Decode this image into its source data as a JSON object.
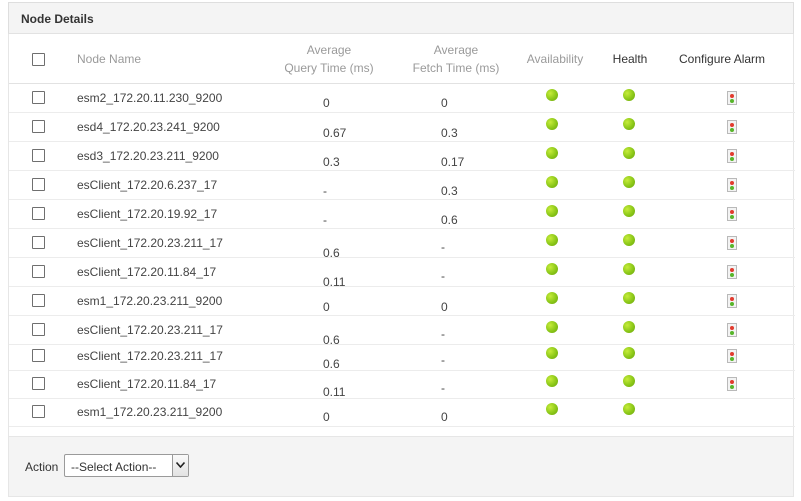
{
  "panel": {
    "title": "Node Details"
  },
  "table": {
    "headers": {
      "node_name": "Node Name",
      "query_time_line1": "Average",
      "query_time_line2": "Query Time  (ms)",
      "fetch_time_line1": "Average",
      "fetch_time_line2": "Fetch Time  (ms)",
      "availability": "Availability",
      "health": "Health",
      "configure_alarm": "Configure Alarm"
    },
    "rows": [
      {
        "name": "esm2_172.20.11.230_9200",
        "query": "0",
        "fetch": "0",
        "availability": "up",
        "health": "up",
        "alarm": true
      },
      {
        "name": "esd4_172.20.23.241_9200",
        "query": "0.67",
        "fetch": "0.3",
        "availability": "up",
        "health": "up",
        "alarm": true
      },
      {
        "name": "esd3_172.20.23.211_9200",
        "query": "0.3",
        "fetch": "0.17",
        "availability": "up",
        "health": "up",
        "alarm": true
      },
      {
        "name": "esClient_172.20.6.237_17",
        "query": "-",
        "fetch": "0.3",
        "availability": "up",
        "health": "up",
        "alarm": true
      },
      {
        "name": "esClient_172.20.19.92_17",
        "query": "-",
        "fetch": "0.6",
        "availability": "up",
        "health": "up",
        "alarm": true
      },
      {
        "name": "esClient_172.20.23.211_17",
        "query": "0.6",
        "fetch": "-",
        "availability": "up",
        "health": "up",
        "alarm": true
      },
      {
        "name": "esClient_172.20.11.84_17",
        "query": "0.11",
        "fetch": "-",
        "availability": "up",
        "health": "up",
        "alarm": true
      },
      {
        "name": "esm1_172.20.23.211_9200",
        "query": "0",
        "fetch": "0",
        "availability": "up",
        "health": "up",
        "alarm": true
      },
      {
        "name": "esClient_172.20.23.211_17",
        "query": "0.6",
        "fetch": "-",
        "availability": "up",
        "health": "up",
        "alarm": true
      },
      {
        "name": "esClient_172.20.23.211_17",
        "query": "0.6",
        "fetch": "-",
        "availability": "up",
        "health": "up",
        "alarm": true
      },
      {
        "name": "esClient_172.20.11.84_17",
        "query": "0.11",
        "fetch": "-",
        "availability": "up",
        "health": "up",
        "alarm": true
      },
      {
        "name": "esm1_172.20.23.211_9200",
        "query": "0",
        "fetch": "0",
        "availability": "up",
        "health": "up",
        "alarm": false
      }
    ]
  },
  "footer": {
    "action_label": "Action",
    "action_select_value": "--Select Action--"
  },
  "colors": {
    "status_up": "#8bc718",
    "header_bg": "#f4f4f4"
  },
  "icons": {
    "availability": "green-status-dot-icon",
    "health": "green-status-dot-icon",
    "alarm": "configure-alarm-icon",
    "select": "chevron-down-icon"
  }
}
